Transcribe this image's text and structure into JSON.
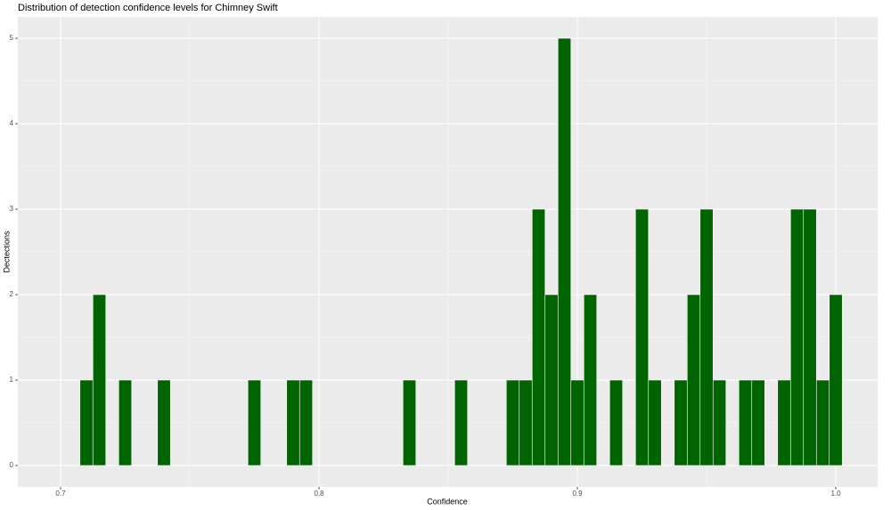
{
  "chart_data": {
    "type": "histogram",
    "title": "Distribution of detection confidence levels for Chimney Swift",
    "x_label": "Confidence",
    "y_label": "Dectections",
    "color": "#006400",
    "bins": [
      0.7075,
      0.7125,
      0.7175,
      0.7225,
      0.7275,
      0.7325,
      0.7375,
      0.7425,
      0.7475,
      0.7525,
      0.7575,
      0.7625,
      0.7675,
      0.7725,
      0.7775,
      0.7825,
      0.7875,
      0.7925,
      0.7975,
      0.8025,
      0.8075,
      0.8125,
      0.8175,
      0.8225,
      0.8275,
      0.8325,
      0.8375,
      0.8425,
      0.8475,
      0.8525,
      0.8575,
      0.8625,
      0.8675,
      0.8725,
      0.8775,
      0.8825,
      0.8875,
      0.8925,
      0.8975,
      0.9025,
      0.9075,
      0.9125,
      0.9175,
      0.9225,
      0.9275,
      0.9325,
      0.9375,
      0.9425,
      0.9475,
      0.9525,
      0.9575,
      0.9625,
      0.9675,
      0.9725,
      0.9775,
      0.9825,
      0.9875,
      0.9925,
      0.9975,
      1.0025
    ],
    "values": [
      1,
      2,
      0,
      1,
      0,
      0,
      1,
      0,
      0,
      0,
      0,
      0,
      0,
      1,
      0,
      0,
      1,
      1,
      0,
      0,
      0,
      0,
      0,
      0,
      0,
      1,
      0,
      0,
      0,
      1,
      0,
      0,
      0,
      1,
      1,
      3,
      2,
      5,
      1,
      2,
      0,
      1,
      0,
      3,
      1,
      0,
      1,
      2,
      3,
      1,
      0,
      1,
      1,
      0,
      1,
      3,
      3,
      1,
      2
    ],
    "xlim": [
      0.68345,
      1.0162
    ],
    "xticks": [
      0.7,
      0.8,
      0.9,
      {
        "value": 1,
        "label": "1.0"
      }
    ],
    "ylim": [
      -0.25,
      5.25
    ],
    "yticks": [
      0,
      1,
      2,
      3,
      4,
      5
    ],
    "grid": true
  }
}
